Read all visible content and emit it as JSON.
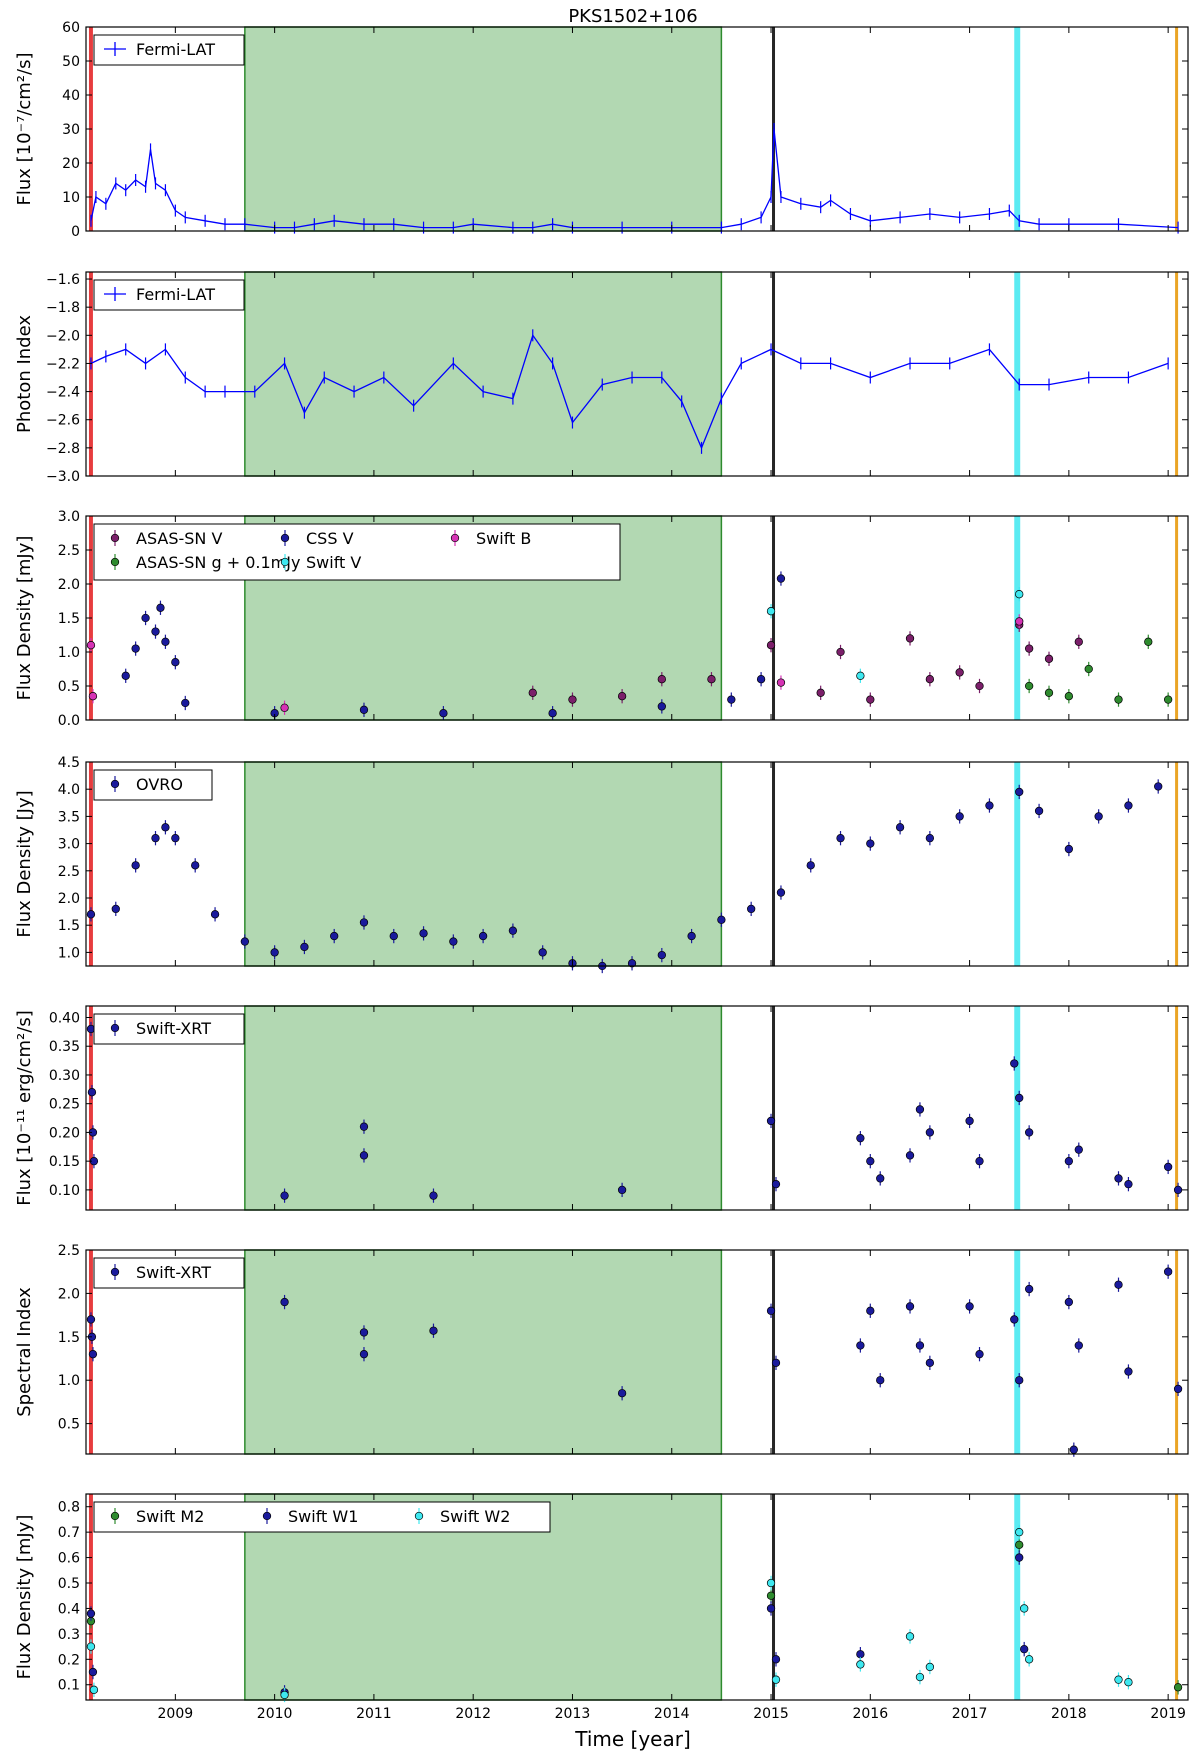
{
  "figure": {
    "title": "PKS1502+106",
    "xlabel": "Time [year]",
    "x_ticks": [
      "2009",
      "2010",
      "2011",
      "2012",
      "2013",
      "2014",
      "2015",
      "2016",
      "2017",
      "2018",
      "2019"
    ]
  },
  "shaded_regions": [
    {
      "x0": 2008.14,
      "x1": 2008.18,
      "color": "#e31a1c",
      "style": "band"
    },
    {
      "x0": 2009.7,
      "x1": 2014.5,
      "color": "#b2d8b2",
      "edge": "#2e8b2e",
      "style": "region"
    },
    {
      "x0": 2015.02,
      "x1": 2015.05,
      "color": "#000000",
      "style": "band"
    },
    {
      "x0": 2017.46,
      "x1": 2017.52,
      "color": "#3ee8f0",
      "style": "band"
    },
    {
      "x0": 2019.08,
      "x1": 2019.1,
      "color": "#e69500",
      "style": "band"
    }
  ],
  "chart_data": [
    {
      "type": "line",
      "ylabel": "Flux [10⁻⁷/cm²/s]",
      "ylim": [
        0,
        60
      ],
      "y_ticks": [
        "0",
        "10",
        "20",
        "30",
        "40",
        "50",
        "60"
      ],
      "legend": [
        "Fermi-LAT"
      ],
      "series": [
        {
          "name": "Fermi-LAT",
          "color": "#0000ff",
          "x": [
            2008.15,
            2008.2,
            2008.3,
            2008.4,
            2008.5,
            2008.6,
            2008.7,
            2008.75,
            2008.8,
            2008.9,
            2009.0,
            2009.1,
            2009.3,
            2009.5,
            2009.7,
            2010.0,
            2010.2,
            2010.4,
            2010.6,
            2010.9,
            2011.2,
            2011.5,
            2011.8,
            2012.0,
            2012.4,
            2012.6,
            2012.8,
            2013.0,
            2013.5,
            2014.0,
            2014.5,
            2014.7,
            2014.9,
            2015.0,
            2015.03,
            2015.1,
            2015.3,
            2015.5,
            2015.6,
            2015.8,
            2016.0,
            2016.3,
            2016.6,
            2016.9,
            2017.2,
            2017.4,
            2017.5,
            2017.7,
            2018.0,
            2018.5,
            2019.1
          ],
          "y": [
            3,
            10,
            8,
            14,
            12,
            15,
            13,
            24,
            14,
            12,
            6,
            4,
            3,
            2,
            2,
            1,
            1,
            2,
            3,
            2,
            2,
            1,
            1,
            2,
            1,
            1,
            2,
            1,
            1,
            1,
            1,
            2,
            4,
            10,
            30,
            10,
            8,
            7,
            9,
            5,
            3,
            4,
            5,
            4,
            5,
            6,
            3,
            2,
            2,
            2,
            1
          ]
        }
      ]
    },
    {
      "type": "line",
      "ylabel": "Photon Index",
      "ylim": [
        -3.0,
        -1.55
      ],
      "y_ticks": [
        "−1.6",
        "−1.8",
        "−2.0",
        "−2.2",
        "−2.4",
        "−2.6",
        "−2.8",
        "−3.0"
      ],
      "legend": [
        "Fermi-LAT"
      ],
      "series": [
        {
          "name": "Fermi-LAT",
          "color": "#0000ff",
          "x": [
            2008.15,
            2008.3,
            2008.5,
            2008.7,
            2008.9,
            2009.1,
            2009.3,
            2009.5,
            2009.8,
            2010.1,
            2010.3,
            2010.5,
            2010.8,
            2011.1,
            2011.4,
            2011.8,
            2012.1,
            2012.4,
            2012.6,
            2012.8,
            2013.0,
            2013.3,
            2013.6,
            2013.9,
            2014.1,
            2014.3,
            2014.5,
            2014.7,
            2015.0,
            2015.3,
            2015.6,
            2016.0,
            2016.4,
            2016.8,
            2017.2,
            2017.5,
            2017.8,
            2018.2,
            2018.6,
            2019.0
          ],
          "y": [
            -2.2,
            -2.15,
            -2.1,
            -2.2,
            -2.1,
            -2.3,
            -2.4,
            -2.4,
            -2.4,
            -2.2,
            -2.55,
            -2.3,
            -2.4,
            -2.3,
            -2.5,
            -2.2,
            -2.4,
            -2.45,
            -2.0,
            -2.2,
            -2.62,
            -2.35,
            -2.3,
            -2.3,
            -2.47,
            -2.8,
            -2.45,
            -2.2,
            -2.1,
            -2.2,
            -2.2,
            -2.3,
            -2.2,
            -2.2,
            -2.1,
            -2.35,
            -2.35,
            -2.3,
            -2.3,
            -2.2
          ]
        }
      ]
    },
    {
      "type": "scatter",
      "ylabel": "Flux Density [mJy]",
      "ylim": [
        0,
        3.0
      ],
      "y_ticks": [
        "0.0",
        "0.5",
        "1.0",
        "1.5",
        "2.0",
        "2.5",
        "3.0"
      ],
      "legend": [
        "ASAS-SN V",
        "ASAS-SN g + 0.1mJy",
        "CSS V",
        "Swift V",
        "Swift B"
      ],
      "series": [
        {
          "name": "CSS V",
          "color": "#1a1a9c",
          "x": [
            2008.5,
            2008.6,
            2008.7,
            2008.8,
            2008.85,
            2008.9,
            2009.0,
            2009.1,
            2010.0,
            2010.9,
            2011.7,
            2012.8,
            2013.9,
            2014.6,
            2014.9,
            2015.1
          ],
          "y": [
            0.65,
            1.05,
            1.5,
            1.3,
            1.65,
            1.15,
            0.85,
            0.25,
            0.1,
            0.15,
            0.1,
            0.1,
            0.2,
            0.3,
            0.6,
            2.08
          ]
        },
        {
          "name": "ASAS-SN V",
          "color": "#7b1f6a",
          "x": [
            2012.6,
            2013.0,
            2013.5,
            2013.9,
            2014.4,
            2015.0,
            2015.5,
            2015.7,
            2016.0,
            2016.4,
            2016.6,
            2016.9,
            2017.1,
            2017.5,
            2017.6,
            2017.8,
            2018.1
          ],
          "y": [
            0.4,
            0.3,
            0.35,
            0.6,
            0.6,
            1.1,
            0.4,
            1.0,
            0.3,
            1.2,
            0.6,
            0.7,
            0.5,
            1.4,
            1.05,
            0.9,
            1.15
          ]
        },
        {
          "name": "ASAS-SN g + 0.1mJy",
          "color": "#2e8b2e",
          "x": [
            2017.6,
            2017.8,
            2018.0,
            2018.2,
            2018.5,
            2018.8,
            2019.0
          ],
          "y": [
            0.5,
            0.4,
            0.35,
            0.75,
            0.3,
            1.15,
            0.3
          ]
        },
        {
          "name": "Swift V",
          "color": "#3ee8f0",
          "x": [
            2015.0,
            2015.9,
            2017.5
          ],
          "y": [
            1.6,
            0.65,
            1.85
          ]
        },
        {
          "name": "Swift B",
          "color": "#d633b5",
          "x": [
            2008.15,
            2008.17,
            2010.1,
            2015.1,
            2017.5
          ],
          "y": [
            1.1,
            0.35,
            0.18,
            0.55,
            1.45
          ]
        }
      ]
    },
    {
      "type": "scatter",
      "ylabel": "Flux Density [Jy]",
      "ylim": [
        0.75,
        4.5
      ],
      "y_ticks": [
        "1.0",
        "1.5",
        "2.0",
        "2.5",
        "3.0",
        "3.5",
        "4.0",
        "4.5"
      ],
      "legend": [
        "OVRO"
      ],
      "series": [
        {
          "name": "OVRO",
          "color": "#1a1a9c",
          "x": [
            2008.15,
            2008.4,
            2008.6,
            2008.8,
            2008.9,
            2009.0,
            2009.2,
            2009.4,
            2009.7,
            2010.0,
            2010.3,
            2010.6,
            2010.9,
            2011.2,
            2011.5,
            2011.8,
            2012.1,
            2012.4,
            2012.7,
            2013.0,
            2013.3,
            2013.6,
            2013.9,
            2014.2,
            2014.5,
            2014.8,
            2015.1,
            2015.4,
            2015.7,
            2016.0,
            2016.3,
            2016.6,
            2016.9,
            2017.2,
            2017.5,
            2017.7,
            2018.0,
            2018.3,
            2018.6,
            2018.9
          ],
          "y": [
            1.7,
            1.8,
            2.6,
            3.1,
            3.3,
            3.1,
            2.6,
            1.7,
            1.2,
            1.0,
            1.1,
            1.3,
            1.55,
            1.3,
            1.35,
            1.2,
            1.3,
            1.4,
            1.0,
            0.8,
            0.75,
            0.8,
            0.95,
            1.3,
            1.6,
            1.8,
            2.1,
            2.6,
            3.1,
            3.0,
            3.3,
            3.1,
            3.5,
            3.7,
            3.95,
            3.6,
            2.9,
            3.5,
            3.7,
            4.05
          ]
        }
      ]
    },
    {
      "type": "scatter",
      "ylabel": "Flux [10⁻¹¹ erg/cm²/s]",
      "ylim": [
        0.065,
        0.42
      ],
      "y_ticks": [
        "0.10",
        "0.15",
        "0.20",
        "0.25",
        "0.30",
        "0.35",
        "0.40"
      ],
      "legend": [
        "Swift-XRT"
      ],
      "series": [
        {
          "name": "Swift-XRT",
          "color": "#1a1a9c",
          "x": [
            2008.15,
            2008.16,
            2008.17,
            2008.18,
            2010.1,
            2010.9,
            2010.9,
            2011.6,
            2013.5,
            2015.0,
            2015.05,
            2015.9,
            2016.0,
            2016.1,
            2016.4,
            2016.5,
            2016.6,
            2017.0,
            2017.1,
            2017.45,
            2017.5,
            2017.6,
            2018.0,
            2018.1,
            2018.5,
            2018.6,
            2019.0,
            2019.1
          ],
          "y": [
            0.38,
            0.27,
            0.2,
            0.15,
            0.09,
            0.21,
            0.16,
            0.09,
            0.1,
            0.22,
            0.11,
            0.19,
            0.15,
            0.12,
            0.16,
            0.24,
            0.2,
            0.22,
            0.15,
            0.32,
            0.26,
            0.2,
            0.15,
            0.17,
            0.12,
            0.11,
            0.14,
            0.1
          ]
        }
      ]
    },
    {
      "type": "scatter",
      "ylabel": "Spectral Index",
      "ylim": [
        0.15,
        2.5
      ],
      "y_ticks": [
        "0.5",
        "1.0",
        "1.5",
        "2.0",
        "2.5"
      ],
      "legend": [
        "Swift-XRT"
      ],
      "series": [
        {
          "name": "Swift-XRT",
          "color": "#1a1a9c",
          "x": [
            2008.15,
            2008.16,
            2008.17,
            2010.1,
            2010.9,
            2010.9,
            2011.6,
            2013.5,
            2015.0,
            2015.05,
            2015.9,
            2016.0,
            2016.1,
            2016.4,
            2016.5,
            2016.6,
            2017.0,
            2017.1,
            2017.45,
            2017.5,
            2017.6,
            2018.0,
            2018.05,
            2018.1,
            2018.5,
            2018.6,
            2019.0,
            2019.1
          ],
          "y": [
            1.7,
            1.5,
            1.3,
            1.9,
            1.55,
            1.3,
            1.57,
            0.85,
            1.8,
            1.2,
            1.4,
            1.8,
            1.0,
            1.85,
            1.4,
            1.2,
            1.85,
            1.3,
            1.7,
            1.0,
            2.05,
            1.9,
            0.2,
            1.4,
            2.1,
            1.1,
            2.25,
            0.9
          ]
        }
      ]
    },
    {
      "type": "scatter",
      "ylabel": "Flux Density [mJy]",
      "ylim": [
        0.04,
        0.85
      ],
      "y_ticks": [
        "0.1",
        "0.2",
        "0.3",
        "0.4",
        "0.5",
        "0.6",
        "0.7",
        "0.8"
      ],
      "legend": [
        "Swift M2",
        "Swift W1",
        "Swift W2"
      ],
      "series": [
        {
          "name": "Swift M2",
          "color": "#2e8b2e",
          "x": [
            2008.15,
            2015.0,
            2017.5,
            2019.1
          ],
          "y": [
            0.35,
            0.45,
            0.65,
            0.09
          ]
        },
        {
          "name": "Swift W1",
          "color": "#1a1a9c",
          "x": [
            2008.15,
            2008.17,
            2010.1,
            2015.0,
            2015.05,
            2015.9,
            2017.5,
            2017.55
          ],
          "y": [
            0.38,
            0.15,
            0.07,
            0.4,
            0.2,
            0.22,
            0.6,
            0.24
          ]
        },
        {
          "name": "Swift W2",
          "color": "#3ee8f0",
          "x": [
            2008.15,
            2008.18,
            2010.1,
            2015.0,
            2015.05,
            2015.9,
            2016.4,
            2016.5,
            2016.6,
            2017.5,
            2017.55,
            2017.6,
            2018.5,
            2018.6
          ],
          "y": [
            0.25,
            0.08,
            0.06,
            0.5,
            0.12,
            0.18,
            0.29,
            0.13,
            0.17,
            0.7,
            0.4,
            0.2,
            0.12,
            0.11
          ]
        }
      ]
    }
  ]
}
